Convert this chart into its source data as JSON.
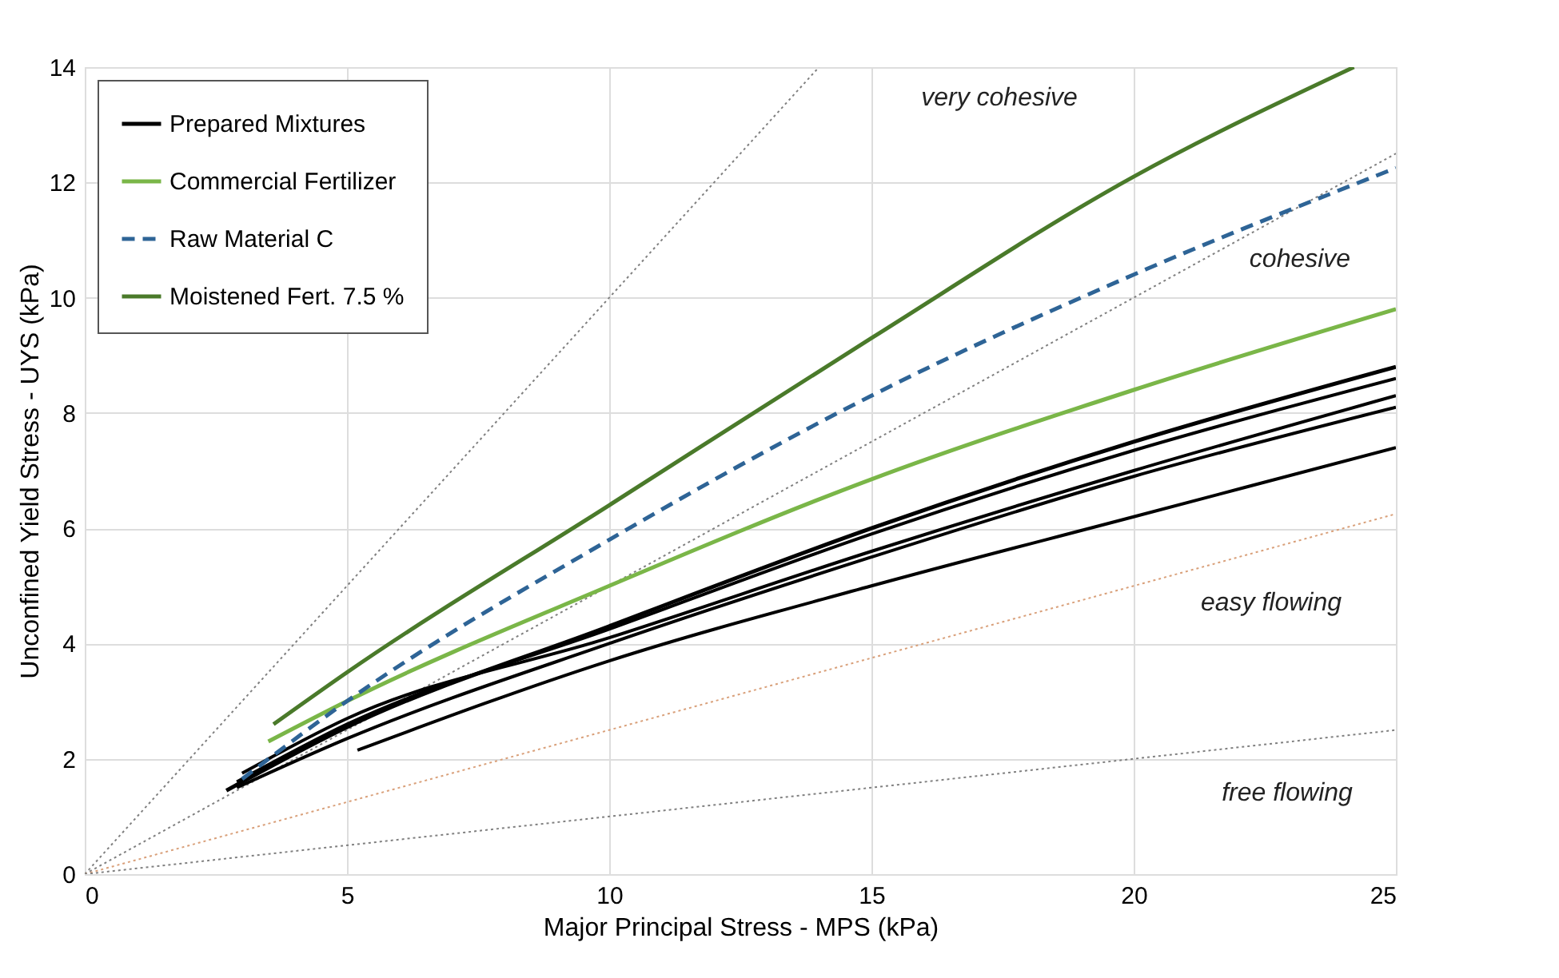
{
  "chart_data": {
    "type": "line",
    "xlabel": "Major Principal Stress - MPS (kPa)",
    "ylabel": "Unconfined Yield Stress - UYS (kPa)",
    "xlim": [
      0,
      25
    ],
    "ylim": [
      0,
      14
    ],
    "xticks": [
      0,
      5,
      10,
      15,
      20,
      25
    ],
    "yticks": [
      0,
      2,
      4,
      6,
      8,
      10,
      12,
      14
    ],
    "grid": true,
    "legend": "top left",
    "series": [
      {
        "type": "line",
        "line_style": "dotted",
        "color": "#808080",
        "x": [
          0,
          14
        ],
        "values": [
          0,
          14
        ]
      },
      {
        "type": "line",
        "line_style": "dotted",
        "color": "#808080",
        "x": [
          0,
          25
        ],
        "values": [
          0,
          12.5
        ]
      },
      {
        "type": "line",
        "line_style": "dotted",
        "color": "#d9a07a",
        "x": [
          0,
          25
        ],
        "values": [
          0,
          6.25
        ]
      },
      {
        "type": "line",
        "line_style": "dotted",
        "color": "#808080",
        "x": [
          0,
          25
        ],
        "values": [
          0,
          2.5
        ]
      },
      {
        "type": "line",
        "line_style": "solid",
        "color": "#000000",
        "x": [
          2.9,
          5,
          10,
          15,
          20,
          25
        ],
        "values": [
          1.6,
          2.6,
          4.25,
          5.9,
          7.35,
          8.6
        ]
      },
      {
        "type": "line",
        "line_style": "solid",
        "color": "#000000",
        "x": [
          3.0,
          5,
          10,
          15,
          20,
          25
        ],
        "values": [
          1.75,
          2.7,
          4.1,
          5.6,
          7.0,
          8.3
        ]
      },
      {
        "type": "line",
        "line_style": "solid",
        "color": "#000000",
        "x": [
          2.9,
          5,
          10,
          15,
          20,
          25
        ],
        "values": [
          1.5,
          2.35,
          4.0,
          5.5,
          6.9,
          8.1
        ]
      },
      {
        "type": "line",
        "line_style": "solid",
        "color": "#000000",
        "x": [
          5.2,
          10,
          15,
          20,
          25
        ],
        "values": [
          2.15,
          3.7,
          5.0,
          6.2,
          7.4
        ]
      },
      {
        "name": "Prepared Mixtures",
        "type": "line",
        "line_style": "solid",
        "color": "#000000",
        "x": [
          2.7,
          5,
          10,
          15,
          20,
          25
        ],
        "values": [
          1.45,
          2.55,
          4.3,
          6.0,
          7.5,
          8.8
        ]
      },
      {
        "name": "Commercial Fertilizer",
        "type": "line",
        "line_style": "solid",
        "color": "#7ab648",
        "x": [
          3.5,
          5,
          10,
          15,
          20,
          25
        ],
        "values": [
          2.3,
          3.0,
          5.0,
          6.85,
          8.4,
          9.8
        ]
      },
      {
        "name": "Raw Material C",
        "type": "line",
        "line_style": "dashed",
        "color": "#2e6496",
        "x": [
          3.0,
          5,
          10,
          15,
          20,
          25
        ],
        "values": [
          1.65,
          3.0,
          5.8,
          8.3,
          10.4,
          12.25
        ]
      },
      {
        "name": "Moistened Fert. 7.5 %",
        "type": "line",
        "line_style": "solid",
        "color": "#4a7a2a",
        "x": [
          3.6,
          5,
          10,
          15,
          20,
          24.2
        ],
        "values": [
          2.6,
          3.5,
          6.4,
          9.3,
          12.1,
          14.0
        ]
      }
    ],
    "annotations": [
      "very cohesive",
      "cohesive",
      "easy flowing",
      "free flowing"
    ]
  }
}
